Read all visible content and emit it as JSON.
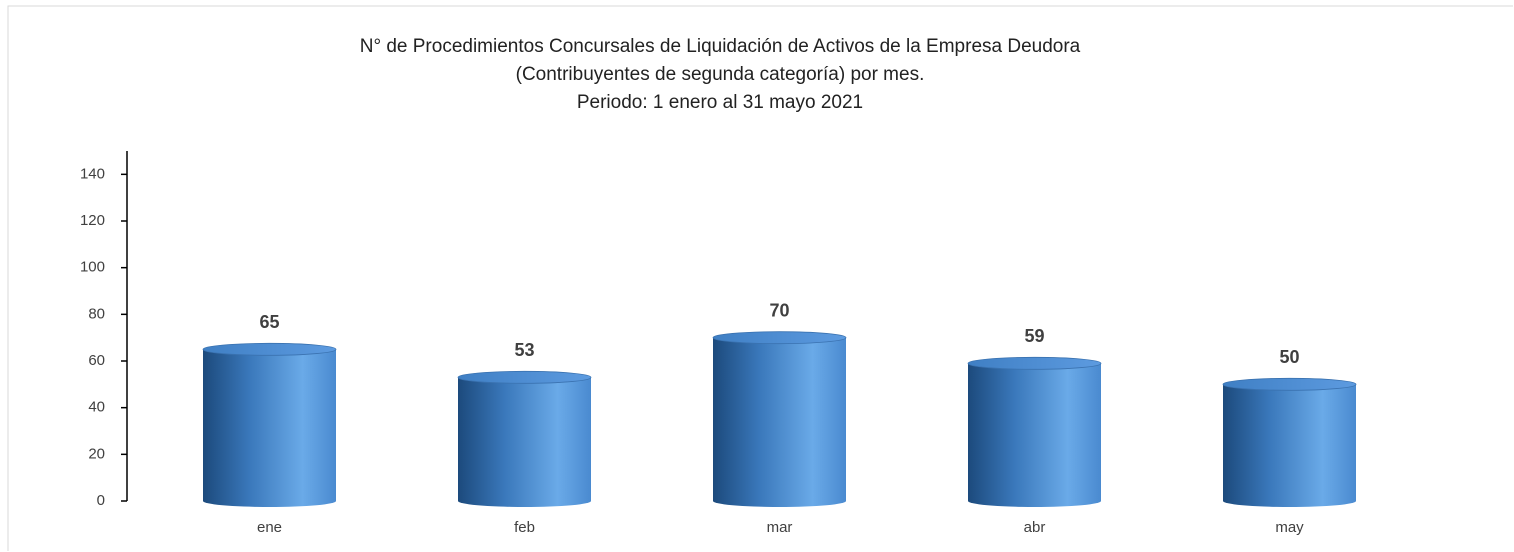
{
  "chart_data": {
    "type": "bar",
    "title": [
      "N° de Procedimientos Concursales de Liquidación de Activos de la Empresa Deudora",
      "(Contribuyentes de segunda categoría) por mes.",
      "Periodo: 1 enero al 31 mayo 2021"
    ],
    "categories": [
      "ene",
      "feb",
      "mar",
      "abr",
      "may"
    ],
    "values": [
      65,
      53,
      70,
      59,
      50
    ],
    "color": "#4a8ad0",
    "ylim": [
      0,
      150
    ],
    "yticks": [
      0,
      20,
      40,
      60,
      80,
      100,
      120,
      140
    ],
    "grid": false
  }
}
